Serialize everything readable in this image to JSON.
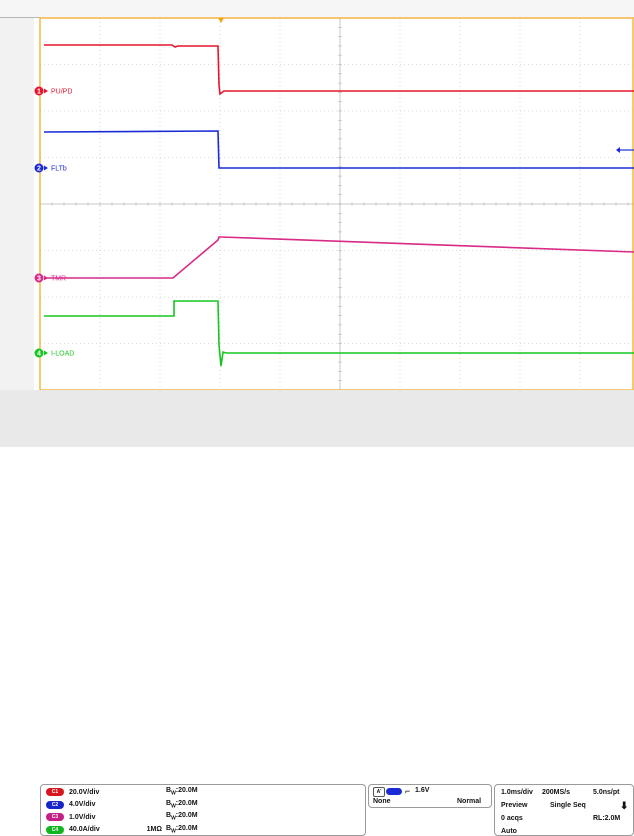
{
  "traces": [
    {
      "label": "PU/PD",
      "number": "1",
      "color": "#e8142d"
    },
    {
      "label": "FLTb",
      "number": "2",
      "color": "#1a2bd6"
    },
    {
      "label": "TMR",
      "number": "3",
      "color": "#d92a88"
    },
    {
      "label": "I-LOAD",
      "number": "4",
      "color": "#17c51f"
    }
  ],
  "channels": [
    {
      "badge": "C1",
      "color": "#d8141d",
      "scale": "20.0V/div",
      "ohm": "",
      "bw": "20.0M"
    },
    {
      "badge": "C2",
      "color": "#1726c9",
      "scale": "4.0V/div",
      "ohm": "",
      "bw": "20.0M"
    },
    {
      "badge": "C3",
      "color": "#c41f84",
      "scale": "1.0V/div",
      "ohm": "",
      "bw": "20.0M"
    },
    {
      "badge": "C4",
      "color": "#12b51f",
      "scale": "40.0A/div",
      "ohm": "1MΩ",
      "bw": "20.0M"
    }
  ],
  "bw_prefix": "B",
  "bw_sub": "W",
  "trigger": {
    "source": "A'",
    "level": "1.6V",
    "mode": "None",
    "type": "Normal"
  },
  "horizontal": {
    "timebase": "1.0ms/div",
    "sample_rate": "200MS/s",
    "resolution": "5.0ns/pt",
    "state": "Preview",
    "acq": "Single Seq",
    "acqs": "0 acqs",
    "record": "RL:2.0M",
    "trig_mode": "Auto"
  },
  "colors": {
    "grid_frame": "#f5a315",
    "grid_line": "#b9b9b9",
    "background": "#ffffff"
  }
}
